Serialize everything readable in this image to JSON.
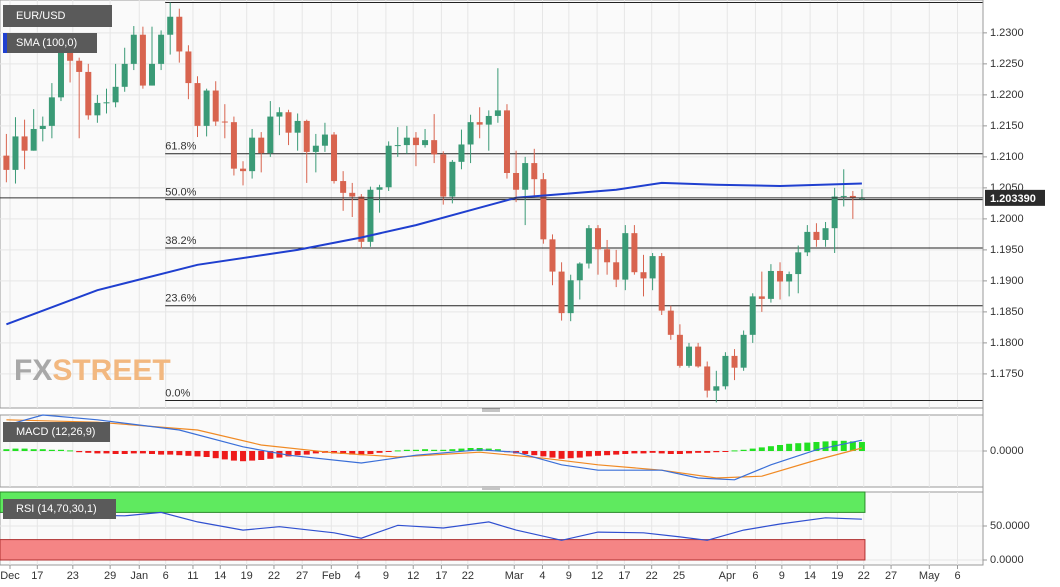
{
  "watermark": [
    "FX",
    "STREET"
  ],
  "chart_data": [
    {
      "type": "candlestick",
      "title": "EUR/USD",
      "open": [
        1.2102,
        1.2079,
        1.2133,
        1.211,
        1.2145,
        1.215,
        1.2196,
        1.2268,
        1.2255,
        1.2237,
        1.2167,
        1.2187,
        1.2188,
        1.2213,
        1.225,
        1.2297,
        1.2215,
        1.225,
        1.2297,
        1.2326,
        1.227,
        1.2219,
        1.215,
        1.2207,
        1.2157,
        1.2156,
        1.2081,
        1.2077,
        1.2131,
        1.2106,
        1.2165,
        1.2172,
        1.2139,
        1.2158,
        1.2108,
        1.2118,
        1.2136,
        1.2061,
        1.2042,
        1.2036,
        1.1963,
        1.2047,
        1.2051,
        1.2118,
        1.2119,
        1.2131,
        1.2119,
        1.2127,
        1.2104,
        1.2036,
        1.2092,
        1.212,
        1.2156,
        1.2152,
        1.2166,
        1.2175,
        1.2074,
        1.2047,
        1.209,
        1.2064,
        1.1967,
        1.1915,
        1.1848,
        1.1901,
        1.1928,
        1.1985,
        1.1951,
        1.193,
        1.1902,
        1.1977,
        1.1914,
        1.1904,
        1.194,
        1.1852,
        1.1813,
        1.1763,
        1.1794,
        1.1762,
        1.1723,
        1.173,
        1.1779,
        1.176,
        1.1813,
        1.1875,
        1.1871,
        1.1916,
        1.1899,
        1.1911,
        1.1946,
        1.1979,
        1.1966,
        1.1985,
        1.2036,
        1.2037,
        1.2034
      ],
      "high": [
        1.2137,
        1.2164,
        1.216,
        1.2177,
        1.2165,
        1.2219,
        1.2273,
        1.2272,
        1.226,
        1.225,
        1.22,
        1.221,
        1.225,
        1.2276,
        1.2311,
        1.231,
        1.231,
        1.2304,
        1.2349,
        1.2339,
        1.228,
        1.223,
        1.221,
        1.2222,
        1.2185,
        1.2165,
        1.2093,
        1.2145,
        1.214,
        1.219,
        1.218,
        1.2176,
        1.217,
        1.216,
        1.2137,
        1.2155,
        1.214,
        1.2077,
        1.2058,
        1.204,
        1.2052,
        1.2055,
        1.2125,
        1.2148,
        1.215,
        1.214,
        1.2145,
        1.2169,
        1.2109,
        1.2095,
        1.2144,
        1.2168,
        1.218,
        1.2175,
        1.2243,
        1.2185,
        1.211,
        1.21,
        1.2113,
        1.2074,
        1.1975,
        1.193,
        1.191,
        1.193,
        1.199,
        1.199,
        1.1966,
        1.195,
        1.199,
        1.199,
        1.1942,
        1.1945,
        1.1945,
        1.186,
        1.183,
        1.18,
        1.18,
        1.177,
        1.1755,
        1.1785,
        1.179,
        1.182,
        1.188,
        1.1915,
        1.1927,
        1.193,
        1.1915,
        1.1957,
        1.199,
        1.1993,
        1.1995,
        1.205,
        1.208,
        1.2045,
        1.2048
      ],
      "low": [
        1.2059,
        1.2057,
        1.208,
        1.211,
        1.2125,
        1.213,
        1.219,
        1.222,
        1.213,
        1.216,
        1.2155,
        1.217,
        1.218,
        1.2205,
        1.224,
        1.221,
        1.2215,
        1.224,
        1.2265,
        1.2252,
        1.2193,
        1.2132,
        1.2133,
        1.215,
        1.213,
        1.207,
        1.2054,
        1.2065,
        1.2075,
        1.21,
        1.2135,
        1.2119,
        1.211,
        1.2058,
        1.2075,
        1.2108,
        1.2057,
        1.2013,
        1.2003,
        1.1952,
        1.1955,
        1.201,
        1.2045,
        1.21,
        1.2105,
        1.2085,
        1.2115,
        1.209,
        1.2023,
        1.2025,
        1.208,
        1.209,
        1.213,
        1.211,
        1.2155,
        1.2065,
        1.2027,
        1.199,
        1.2035,
        1.196,
        1.1893,
        1.1836,
        1.1835,
        1.187,
        1.192,
        1.191,
        1.191,
        1.189,
        1.1885,
        1.191,
        1.1875,
        1.1885,
        1.1845,
        1.1805,
        1.176,
        1.176,
        1.176,
        1.1712,
        1.1704,
        1.1725,
        1.174,
        1.1755,
        1.18,
        1.185,
        1.1865,
        1.187,
        1.1875,
        1.188,
        1.194,
        1.1955,
        1.1955,
        1.1945,
        1.202,
        1.2,
        1.203
      ],
      "close": [
        1.2079,
        1.2133,
        1.211,
        1.2145,
        1.215,
        1.2196,
        1.2268,
        1.2255,
        1.2237,
        1.2167,
        1.2187,
        1.2188,
        1.2213,
        1.225,
        1.2297,
        1.2215,
        1.225,
        1.2297,
        1.2326,
        1.227,
        1.2219,
        1.215,
        1.2207,
        1.2157,
        1.2156,
        1.2081,
        1.2077,
        1.2131,
        1.2106,
        1.2165,
        1.2172,
        1.2139,
        1.2158,
        1.2108,
        1.2118,
        1.2136,
        1.2061,
        1.2042,
        1.2036,
        1.1963,
        1.2047,
        1.2051,
        1.2118,
        1.2119,
        1.2131,
        1.2119,
        1.2127,
        1.2104,
        1.2036,
        1.2092,
        1.212,
        1.2156,
        1.2152,
        1.2166,
        1.2175,
        1.2074,
        1.2047,
        1.209,
        1.2064,
        1.1967,
        1.1915,
        1.1848,
        1.1901,
        1.1928,
        1.1985,
        1.1951,
        1.193,
        1.1902,
        1.1977,
        1.1914,
        1.1904,
        1.194,
        1.1852,
        1.1813,
        1.1763,
        1.1794,
        1.1762,
        1.1723,
        1.173,
        1.1779,
        1.176,
        1.1813,
        1.1875,
        1.1871,
        1.1916,
        1.1899,
        1.1911,
        1.1946,
        1.1979,
        1.1966,
        1.1985,
        1.2036,
        1.2037,
        1.2034,
        1.2034
      ],
      "up_color": "#3a9a76",
      "down_color": "#d8644f",
      "ylim": [
        1.1695,
        1.2353
      ],
      "yticks": [
        {
          "value": 1.23,
          "label": "1.2300"
        },
        {
          "value": 1.225,
          "label": "1.2250"
        },
        {
          "value": 1.22,
          "label": "1.2200"
        },
        {
          "value": 1.215,
          "label": "1.2150"
        },
        {
          "value": 1.21,
          "label": "1.2100"
        },
        {
          "value": 1.205,
          "label": "1.2050"
        },
        {
          "value": 1.2,
          "label": "1.2000"
        },
        {
          "value": 1.195,
          "label": "1.1950"
        },
        {
          "value": 1.19,
          "label": "1.1900"
        },
        {
          "value": 1.185,
          "label": "1.1850"
        },
        {
          "value": 1.18,
          "label": "1.1800"
        },
        {
          "value": 1.175,
          "label": "1.1750"
        }
      ],
      "xlim": [
        -0.7,
        107.3
      ],
      "xticks": [
        {
          "value": 0.4,
          "label": "Dec"
        },
        {
          "value": 3.4,
          "label": "17"
        },
        {
          "value": 7.3,
          "label": "23"
        },
        {
          "value": 11.4,
          "label": "29"
        },
        {
          "value": 14.6,
          "label": "Jan"
        },
        {
          "value": 17.5,
          "label": "6"
        },
        {
          "value": 20.5,
          "label": "11"
        },
        {
          "value": 23.5,
          "label": "14"
        },
        {
          "value": 26.4,
          "label": "19"
        },
        {
          "value": 29.4,
          "label": "22"
        },
        {
          "value": 32.5,
          "label": "27"
        },
        {
          "value": 35.7,
          "label": "Feb"
        },
        {
          "value": 38.6,
          "label": "4"
        },
        {
          "value": 41.7,
          "label": "9"
        },
        {
          "value": 44.7,
          "label": "12"
        },
        {
          "value": 47.8,
          "label": "17"
        },
        {
          "value": 50.7,
          "label": "22"
        },
        {
          "value": 55.8,
          "label": "Mar"
        },
        {
          "value": 58.9,
          "label": "4"
        },
        {
          "value": 61.8,
          "label": "9"
        },
        {
          "value": 64.9,
          "label": "12"
        },
        {
          "value": 67.9,
          "label": "17"
        },
        {
          "value": 70.9,
          "label": "22"
        },
        {
          "value": 73.9,
          "label": "25"
        },
        {
          "value": 79.2,
          "label": "Apr"
        },
        {
          "value": 82.3,
          "label": "6"
        },
        {
          "value": 85.2,
          "label": "9"
        },
        {
          "value": 88.3,
          "label": "14"
        },
        {
          "value": 91.3,
          "label": "19"
        },
        {
          "value": 94.2,
          "label": "22"
        },
        {
          "value": 97.2,
          "label": "27"
        },
        {
          "value": 101.4,
          "label": "May"
        },
        {
          "value": 104.5,
          "label": "6"
        }
      ],
      "grid": true,
      "sma": {
        "name": "SMA (100,0)",
        "color": "#1f3fcf",
        "x": [
          0,
          10,
          21,
          32,
          39,
          45,
          52,
          56,
          61,
          67,
          72,
          78,
          85,
          94
        ],
        "values": [
          1.183,
          1.1885,
          1.1926,
          1.195,
          1.197,
          1.199,
          1.2018,
          1.2034,
          1.204,
          1.2047,
          1.2058,
          1.2055,
          1.2053,
          1.2057
        ]
      },
      "fibonacci": {
        "start": 18,
        "levels": [
          {
            "value": 1.2349
          },
          {
            "value": 1.2105,
            "label": "61.8%"
          },
          {
            "value": 1.2031,
            "label": "50.0%"
          },
          {
            "value": 1.1953,
            "label": "38.2%"
          },
          {
            "value": 1.186,
            "label": "23.6%"
          },
          {
            "value": 1.1707,
            "label": "0.0%"
          }
        ]
      },
      "last": {
        "value": 1.20339,
        "label": "1.203390"
      }
    },
    {
      "type": "macd",
      "title": "MACD (12,26,9)",
      "histogram": [
        0.0003,
        0.0004,
        0.0004,
        0.0003,
        0.0003,
        0.0002,
        0.0002,
        0.0001,
        -0.0002,
        -0.0003,
        -0.0004,
        -0.0004,
        -0.0005,
        -0.0005,
        -0.0004,
        -0.0004,
        -0.0005,
        -0.0006,
        -0.0006,
        -0.0007,
        -0.0008,
        -0.0009,
        -0.001,
        -0.0012,
        -0.0014,
        -0.0016,
        -0.0017,
        -0.0016,
        -0.0015,
        -0.0013,
        -0.0011,
        -0.0009,
        -0.0007,
        -0.0006,
        -0.0004,
        -0.0003,
        -0.0004,
        -0.0005,
        -0.0006,
        -0.0007,
        -0.0005,
        -0.0003,
        -0.0001,
        0.0001,
        0.0002,
        0.0002,
        0.0003,
        0.0002,
        0.0002,
        0.0003,
        0.0004,
        0.0005,
        0.0005,
        0.0004,
        0.0003,
        -0.0002,
        -0.0004,
        -0.0005,
        -0.0007,
        -0.0009,
        -0.0011,
        -0.0013,
        -0.0012,
        -0.0011,
        -0.0009,
        -0.0008,
        -0.0007,
        -0.0006,
        -0.0005,
        -0.0004,
        -0.0004,
        -0.0003,
        -0.0004,
        -0.0005,
        -0.0005,
        -0.0004,
        -0.0003,
        -0.0003,
        -0.0002,
        -0.0001,
        0.0001,
        0.0002,
        0.0004,
        0.0006,
        0.0008,
        0.001,
        0.0012,
        0.0013,
        0.0014,
        0.0015,
        0.0016,
        0.0017,
        0.0017,
        0.0016,
        0.0015
      ],
      "up_color": "#22e022",
      "down_color": "#ee1a1a",
      "macd": {
        "color": "#3a6fd8",
        "x": [
          0,
          4,
          10,
          19,
          26,
          31,
          39,
          45,
          52,
          56,
          61,
          65,
          72,
          76,
          80,
          84,
          89,
          94
        ],
        "values": [
          0.0043,
          0.006,
          0.0052,
          0.0035,
          0.0007,
          -0.0007,
          -0.002,
          -0.0007,
          0.0002,
          -0.0002,
          -0.0023,
          -0.0032,
          -0.0032,
          -0.0045,
          -0.0048,
          -0.0023,
          0.0002,
          0.0018
        ]
      },
      "signal": {
        "color": "#f08a24",
        "x": [
          0,
          10,
          21,
          28,
          36,
          43,
          52,
          59,
          65,
          72,
          78,
          83,
          89,
          94
        ],
        "values": [
          0.0052,
          0.0048,
          0.0035,
          0.001,
          -0.0003,
          -0.001,
          -0.0002,
          -0.0012,
          -0.0023,
          -0.0032,
          -0.0045,
          -0.0042,
          -0.0015,
          0.0005
        ]
      },
      "ylim": [
        -0.006,
        0.006
      ],
      "yticks": [
        {
          "value": 0,
          "label": "0.0000"
        }
      ]
    },
    {
      "type": "rsi",
      "title": "RSI (14,70,30,1)",
      "rsi": {
        "color": "#3050d0",
        "x": [
          0,
          4,
          8,
          13,
          17,
          21,
          26,
          30,
          36,
          39,
          43,
          48,
          53,
          56,
          61,
          65,
          70,
          74,
          77,
          81,
          85,
          90,
          94
        ],
        "values": [
          63,
          73,
          66,
          65,
          70,
          56,
          44,
          49,
          40,
          32,
          51,
          47,
          56,
          44,
          29,
          41,
          40,
          34,
          29,
          44,
          53,
          62,
          60
        ]
      },
      "overbought": 70,
      "oversold": 30,
      "zone_colors": [
        "#5fea5f",
        "#f58585"
      ],
      "ylim": [
        0,
        100
      ],
      "yticks": [
        {
          "value": 50,
          "label": "50.0000"
        },
        {
          "value": 0,
          "label": "0.0000"
        }
      ]
    }
  ]
}
